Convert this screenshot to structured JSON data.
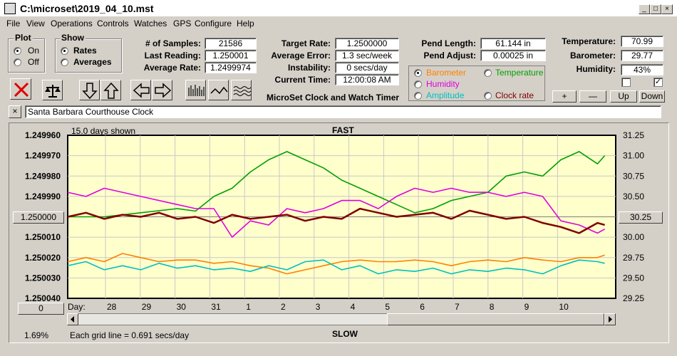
{
  "window": {
    "title": "C:\\microset\\2019_04_10.mst",
    "min": "_",
    "max": "□",
    "close": "×"
  },
  "menu": [
    "File",
    "View",
    "Operations",
    "Controls",
    "Watches",
    "GPS",
    "Configure",
    "Help"
  ],
  "plot": {
    "title": "Plot",
    "on": "On",
    "off": "Off",
    "selected": "On"
  },
  "show": {
    "title": "Show",
    "rates": "Rates",
    "averages": "Averages",
    "selected": "Rates"
  },
  "stats": {
    "samples_label": "# of Samples:",
    "samples": "21586",
    "last_label": "Last Reading:",
    "last": "1.250001",
    "avg_rate_label": "Average Rate:",
    "avg_rate": "1.2499974",
    "target_label": "Target Rate:",
    "target": "1.2500000",
    "avg_err_label": "Average Error:",
    "avg_err": "1.3 sec/week",
    "instab_label": "Instability:",
    "instab": "0 secs/day",
    "time_label": "Current Time:",
    "time": "12:00:08 AM",
    "pend_len_label": "Pend Length:",
    "pend_len": "61.144 in",
    "pend_adj_label": "Pend Adjust:",
    "pend_adj": "0.00025 in",
    "temp_label": "Temperature:",
    "temp": "70.99",
    "baro_label": "Barometer:",
    "baro": "29.77",
    "hum_label": "Humidity:",
    "hum": "43%"
  },
  "sensor_options": {
    "barometer": "Barometer",
    "temperature": "Temperature",
    "humidity": "Humidity",
    "amplitude": "Amplitude",
    "clock_rate": "Clock rate",
    "selected": "Barometer",
    "colors": {
      "barometer": "#ff8000",
      "temperature": "#00a000",
      "humidity": "#e000e0",
      "amplitude": "#00c0c0",
      "clock_rate": "#800000"
    }
  },
  "app_title": "MicroSet Clock and Watch Timer",
  "adjust_buttons": {
    "plus": "+",
    "minus": "—",
    "up": "Up",
    "down": "Down"
  },
  "checkbox2_mark": "✓",
  "clock_name": "Santa Barbara Courthouse Clock",
  "clear_label": "×",
  "chart_labels": {
    "days_shown": "15.0 days shown",
    "fast": "FAST",
    "slow": "SLOW",
    "grid_line": "Each grid line = 0.691 secs/day",
    "percent": "1.69%",
    "day_label": "Day:",
    "left_button": "1.250000",
    "right_button": "30.25",
    "bottom_button": "0"
  },
  "chart_data": {
    "type": "line",
    "left_axis": {
      "ticks": [
        "1.249960",
        "1.249970",
        "1.249980",
        "1.249990",
        "1.250000",
        "1.250010",
        "1.250020",
        "1.250030",
        "1.250040"
      ],
      "range": [
        1.24996,
        1.25004
      ],
      "inverted": true
    },
    "right_axis": {
      "ticks": [
        "31.25",
        "31.00",
        "30.75",
        "30.50",
        "30.25",
        "30.00",
        "29.75",
        "29.50",
        "29.25"
      ],
      "range": [
        29.25,
        31.25
      ]
    },
    "x_ticks": [
      "28",
      "29",
      "30",
      "31",
      "1",
      "2",
      "3",
      "4",
      "5",
      "6",
      "7",
      "8",
      "9",
      "10"
    ],
    "x_range": [
      0,
      15
    ],
    "series": [
      {
        "name": "Temperature",
        "color": "#00a000",
        "axis": "right",
        "x": [
          0,
          1,
          2,
          3,
          3.5,
          4,
          4.5,
          5,
          5.5,
          6,
          6.5,
          7,
          7.5,
          8,
          8.5,
          9,
          9.5,
          10,
          10.5,
          11,
          11.5,
          12,
          12.5,
          13,
          13.5,
          14,
          14.5,
          14.7
        ],
        "y": [
          30.25,
          30.25,
          30.3,
          30.35,
          30.32,
          30.5,
          30.6,
          30.8,
          30.95,
          31.05,
          30.95,
          30.85,
          30.7,
          30.6,
          30.5,
          30.4,
          30.3,
          30.35,
          30.45,
          30.5,
          30.55,
          30.75,
          30.8,
          30.75,
          30.95,
          31.05,
          30.9,
          31.0
        ]
      },
      {
        "name": "Humidity",
        "color": "#e000e0",
        "axis": "right",
        "x": [
          0,
          0.5,
          1,
          2,
          3,
          3.5,
          4,
          4.5,
          5,
          5.5,
          6,
          6.5,
          7,
          7.5,
          8,
          8.5,
          9,
          9.5,
          10,
          10.5,
          11,
          11.5,
          12,
          12.5,
          13,
          13.5,
          14,
          14.5,
          14.7
        ],
        "y": [
          30.55,
          30.5,
          30.6,
          30.5,
          30.4,
          30.35,
          30.35,
          30.0,
          30.2,
          30.15,
          30.35,
          30.3,
          30.35,
          30.45,
          30.45,
          30.35,
          30.5,
          30.6,
          30.55,
          30.6,
          30.55,
          30.55,
          30.5,
          30.55,
          30.5,
          30.2,
          30.15,
          30.05,
          30.1
        ]
      },
      {
        "name": "Barometer",
        "color": "#ff8000",
        "axis": "right",
        "x": [
          0,
          0.5,
          1,
          1.5,
          2,
          2.5,
          3,
          3.5,
          4,
          4.5,
          5,
          5.5,
          6,
          6.5,
          7,
          7.5,
          8,
          8.5,
          9,
          9.5,
          10,
          10.5,
          11,
          11.5,
          12,
          12.5,
          13,
          13.5,
          14,
          14.5,
          14.7
        ],
        "y": [
          29.7,
          29.75,
          29.7,
          29.8,
          29.75,
          29.7,
          29.72,
          29.72,
          29.68,
          29.7,
          29.65,
          29.62,
          29.55,
          29.6,
          29.65,
          29.7,
          29.72,
          29.7,
          29.7,
          29.72,
          29.7,
          29.65,
          29.7,
          29.72,
          29.7,
          29.75,
          29.72,
          29.7,
          29.75,
          29.75,
          29.78
        ]
      },
      {
        "name": "Amplitude",
        "color": "#00c0c0",
        "axis": "right",
        "x": [
          0,
          0.5,
          1,
          1.5,
          2,
          2.5,
          3,
          3.5,
          4,
          4.5,
          5,
          5.5,
          6,
          6.5,
          7,
          7.5,
          8,
          8.5,
          9,
          9.5,
          10,
          10.5,
          11,
          11.5,
          12,
          12.5,
          13,
          13.5,
          14,
          14.5,
          14.7
        ],
        "y": [
          29.65,
          29.7,
          29.6,
          29.65,
          29.6,
          29.68,
          29.62,
          29.65,
          29.6,
          29.62,
          29.58,
          29.65,
          29.6,
          29.7,
          29.72,
          29.6,
          29.65,
          29.55,
          29.6,
          29.58,
          29.62,
          29.55,
          29.6,
          29.58,
          29.62,
          29.6,
          29.55,
          29.65,
          29.72,
          29.7,
          29.68
        ]
      },
      {
        "name": "Clock rate",
        "color": "#800000",
        "axis": "left",
        "x": [
          0,
          0.5,
          1,
          1.5,
          2,
          2.5,
          3,
          3.5,
          4,
          4.5,
          5,
          5.5,
          6,
          6.5,
          7,
          7.5,
          8,
          8.5,
          9,
          9.5,
          10,
          10.5,
          11,
          11.5,
          12,
          12.5,
          13,
          13.5,
          14,
          14.5,
          14.7
        ],
        "y": [
          1.25,
          1.249998,
          1.250001,
          1.249999,
          1.25,
          1.249998,
          1.250001,
          1.25,
          1.250003,
          1.249999,
          1.250001,
          1.25,
          1.249999,
          1.250002,
          1.25,
          1.250001,
          1.249996,
          1.249998,
          1.25,
          1.249999,
          1.249998,
          1.250001,
          1.249997,
          1.249999,
          1.250001,
          1.25,
          1.250003,
          1.250005,
          1.250008,
          1.250003,
          1.250004
        ]
      }
    ]
  }
}
